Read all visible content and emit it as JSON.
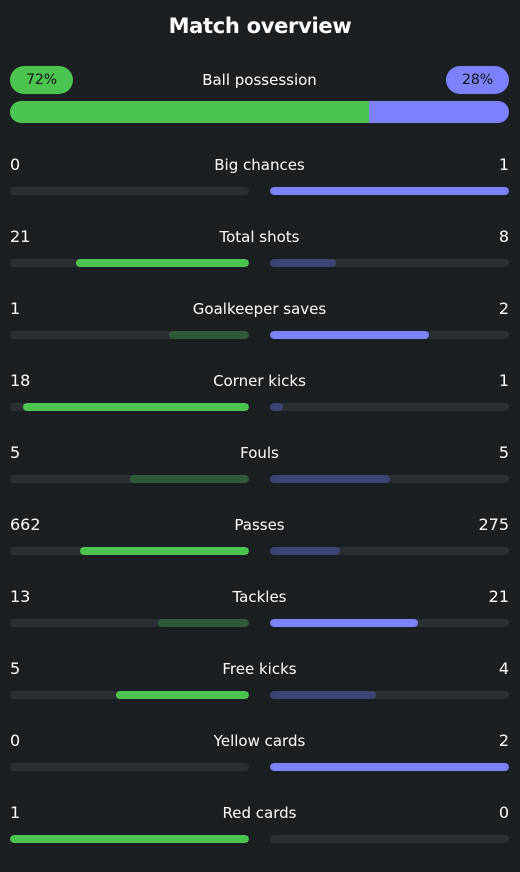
{
  "title": "Match overview",
  "possession": {
    "label": "Ball possession",
    "home": "72%",
    "away": "28%",
    "home_value": 72,
    "away_value": 28
  },
  "colors": {
    "home_win": "#4cc450",
    "home_lose": "#2e5a37",
    "away_win": "#7b82fb",
    "away_lose": "#3c4473",
    "track": "#2a2f34",
    "background": "#1b1f22"
  },
  "stats": [
    {
      "label": "Big chances",
      "home": "0",
      "away": "1"
    },
    {
      "label": "Total shots",
      "home": "21",
      "away": "8"
    },
    {
      "label": "Goalkeeper saves",
      "home": "1",
      "away": "2"
    },
    {
      "label": "Corner kicks",
      "home": "18",
      "away": "1"
    },
    {
      "label": "Fouls",
      "home": "5",
      "away": "5"
    },
    {
      "label": "Passes",
      "home": "662",
      "away": "275"
    },
    {
      "label": "Tackles",
      "home": "13",
      "away": "21"
    },
    {
      "label": "Free kicks",
      "home": "5",
      "away": "4"
    },
    {
      "label": "Yellow cards",
      "home": "0",
      "away": "2"
    },
    {
      "label": "Red cards",
      "home": "1",
      "away": "0"
    }
  ]
}
